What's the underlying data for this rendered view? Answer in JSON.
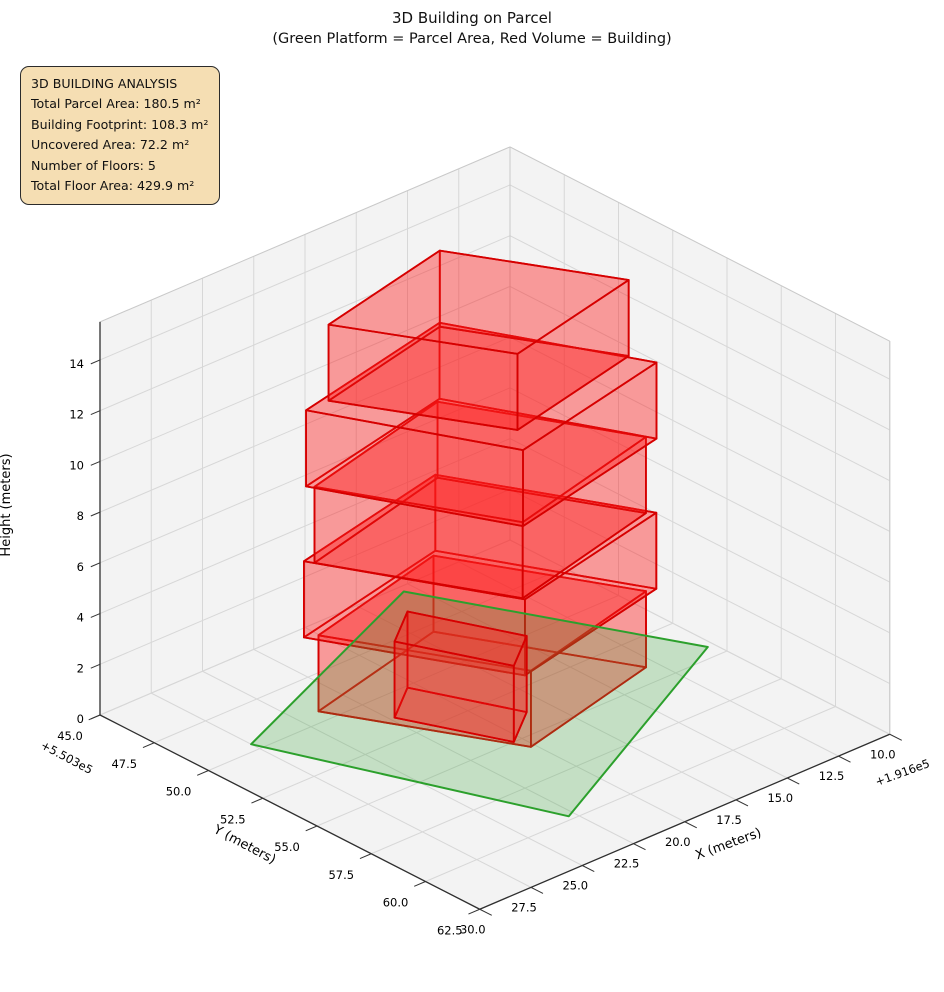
{
  "title": "3D Building on Parcel",
  "subtitle": "(Green Platform = Parcel Area, Red Volume = Building)",
  "info_box": {
    "heading": "3D BUILDING ANALYSIS",
    "lines": [
      "Total Parcel Area: 180.5 m²",
      "Building Footprint: 108.3 m²",
      "Uncovered Area: 72.2 m²",
      "Number of Floors: 5",
      "Total Floor Area: 429.9 m²"
    ],
    "bg_color": "#f5deb3",
    "border_color": "#2b2b2b"
  },
  "chart_data": {
    "type": "3d-building",
    "axes": {
      "x": {
        "label": "X (meters)",
        "ticks": [
          "10.0",
          "12.5",
          "15.0",
          "17.5",
          "20.0",
          "22.5",
          "25.0",
          "27.5",
          "30.0"
        ],
        "offset_text": "+1.916e5",
        "range": [
          10,
          30
        ]
      },
      "y": {
        "label": "Y (meters)",
        "ticks": [
          "45.0",
          "47.5",
          "50.0",
          "52.5",
          "55.0",
          "57.5",
          "60.0",
          "62.5"
        ],
        "offset_text": "+5.503e5",
        "range": [
          45,
          62.5
        ]
      },
      "z": {
        "label": "Height (meters)",
        "ticks": [
          "0",
          "2",
          "4",
          "6",
          "8",
          "10",
          "12",
          "14"
        ],
        "range": [
          0,
          15.5
        ]
      }
    },
    "parcel": {
      "polygon": [
        [
          15.5,
          45.3
        ],
        [
          10.3,
          54.4
        ],
        [
          22.8,
          59.8
        ],
        [
          27.5,
          49.6
        ]
      ],
      "z": 0,
      "fill": "rgba(60,165,60,0.26)",
      "edge": "#2ca02c",
      "edge_width": 2
    },
    "building": {
      "floor_height": 3,
      "num_floors": 5,
      "face_fill": "rgba(255,28,28,0.24)",
      "edge": "#d60000",
      "edge_width": 1.8,
      "floors": [
        {
          "name": "floor-1",
          "z0": 0,
          "z1": 3,
          "footprint": [
            [
              24.0,
              49.4
            ],
            [
              16.8,
              47.9
            ],
            [
              13.0,
              54.1
            ],
            [
              20.2,
              55.6
            ]
          ]
        },
        {
          "name": "floor-2",
          "z0": 3,
          "z1": 6,
          "footprint": [
            [
              24.5,
              49.2
            ],
            [
              16.5,
              47.7
            ],
            [
              12.6,
              54.2
            ],
            [
              20.6,
              55.7
            ]
          ]
        },
        {
          "name": "floor-3",
          "z0": 6,
          "z1": 9,
          "footprint": [
            [
              24.3,
              49.5
            ],
            [
              16.6,
              47.9
            ],
            [
              12.9,
              54.0
            ],
            [
              20.6,
              55.6
            ]
          ]
        },
        {
          "name": "floor-4",
          "z0": 9,
          "z1": 12,
          "footprint": [
            [
              24.5,
              49.3
            ],
            [
              16.4,
              47.8
            ],
            [
              12.7,
              54.3
            ],
            [
              20.8,
              55.8
            ]
          ]
        },
        {
          "name": "floor-5",
          "z0": 12,
          "z1": 15,
          "footprint": [
            [
              23.4,
              49.3
            ],
            [
              16.6,
              48.0
            ],
            [
              13.1,
              53.4
            ],
            [
              19.9,
              54.7
            ]
          ]
        }
      ],
      "annex": {
        "name": "annex-block",
        "z0": 0,
        "z1": 3,
        "footprint": [
          [
            22.3,
            51.3
          ],
          [
            20.4,
            55.0
          ],
          [
            18.5,
            53.8
          ],
          [
            20.4,
            50.1
          ]
        ]
      }
    },
    "style": {
      "pane_fill": "#f3f3f3",
      "pane_edge": "#dedede",
      "grid_color": "#d7d7d7",
      "cube_edge_light": "#c9c9c9",
      "axis_edge": "#2f2f2f",
      "tick_color": "#333333",
      "text_color": "#000000"
    }
  }
}
